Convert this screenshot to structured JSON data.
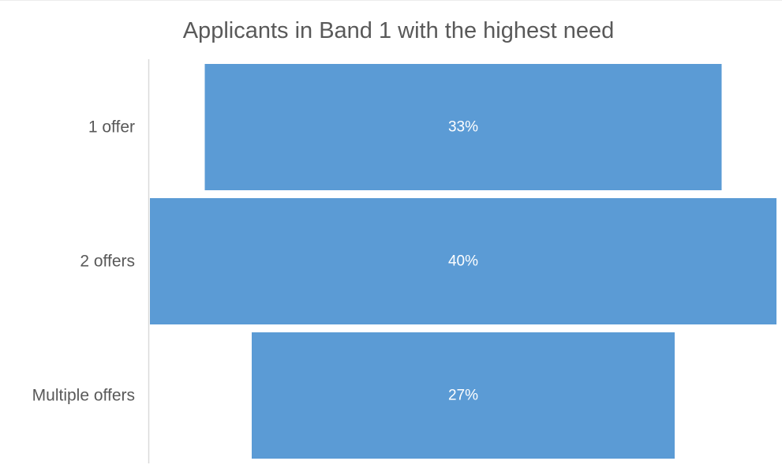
{
  "chart_data": {
    "type": "bar",
    "subtype": "funnel",
    "title": "Applicants in Band 1 with the highest need",
    "xlabel": "",
    "ylabel": "",
    "categories": [
      "1 offer",
      "2 offers",
      "Multiple offers"
    ],
    "values": [
      33,
      40,
      27
    ],
    "data_labels": [
      "33%",
      "40%",
      "27%"
    ],
    "unit": "%",
    "bar_color": "#5B9BD5",
    "label_color": "#FFFFFF",
    "grid": false,
    "legend": "none"
  }
}
